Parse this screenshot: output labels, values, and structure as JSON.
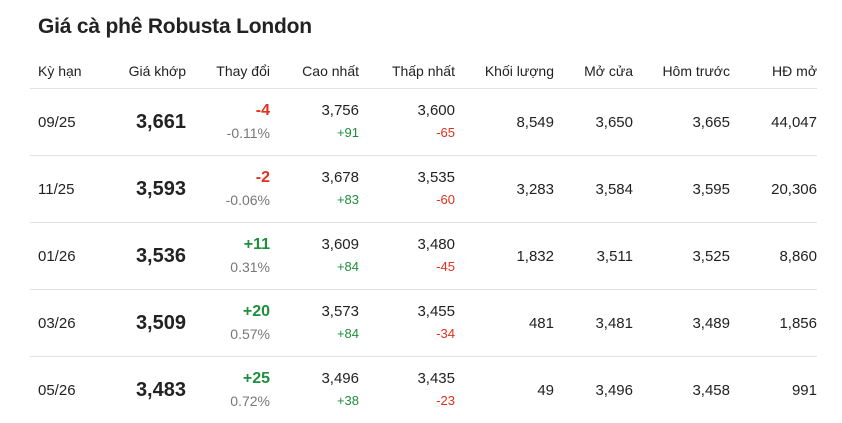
{
  "title": "Giá cà phê Robusta London",
  "headers": {
    "term": "Kỳ hạn",
    "match": "Giá khớp",
    "change": "Thay đổi",
    "high": "Cao nhất",
    "low": "Thấp nhất",
    "volume": "Khối lượng",
    "open": "Mở cửa",
    "prev": "Hôm trước",
    "oi": "HĐ mở"
  },
  "colors": {
    "up": "#1e8f3c",
    "down": "#e0301e",
    "muted": "#777777",
    "divider": "#e3e3e3"
  },
  "rows": [
    {
      "term": "09/25",
      "match": "3,661",
      "change": "-4",
      "change_pct": "-0.11%",
      "direction": "down",
      "high": "3,756",
      "high_diff": "+91",
      "low": "3,600",
      "low_diff": "-65",
      "volume": "8,549",
      "open": "3,650",
      "prev": "3,665",
      "oi": "44,047"
    },
    {
      "term": "11/25",
      "match": "3,593",
      "change": "-2",
      "change_pct": "-0.06%",
      "direction": "down",
      "high": "3,678",
      "high_diff": "+83",
      "low": "3,535",
      "low_diff": "-60",
      "volume": "3,283",
      "open": "3,584",
      "prev": "3,595",
      "oi": "20,306"
    },
    {
      "term": "01/26",
      "match": "3,536",
      "change": "+11",
      "change_pct": "0.31%",
      "direction": "up",
      "high": "3,609",
      "high_diff": "+84",
      "low": "3,480",
      "low_diff": "-45",
      "volume": "1,832",
      "open": "3,511",
      "prev": "3,525",
      "oi": "8,860"
    },
    {
      "term": "03/26",
      "match": "3,509",
      "change": "+20",
      "change_pct": "0.57%",
      "direction": "up",
      "high": "3,573",
      "high_diff": "+84",
      "low": "3,455",
      "low_diff": "-34",
      "volume": "481",
      "open": "3,481",
      "prev": "3,489",
      "oi": "1,856"
    },
    {
      "term": "05/26",
      "match": "3,483",
      "change": "+25",
      "change_pct": "0.72%",
      "direction": "up",
      "high": "3,496",
      "high_diff": "+38",
      "low": "3,435",
      "low_diff": "-23",
      "volume": "49",
      "open": "3,496",
      "prev": "3,458",
      "oi": "991"
    }
  ]
}
